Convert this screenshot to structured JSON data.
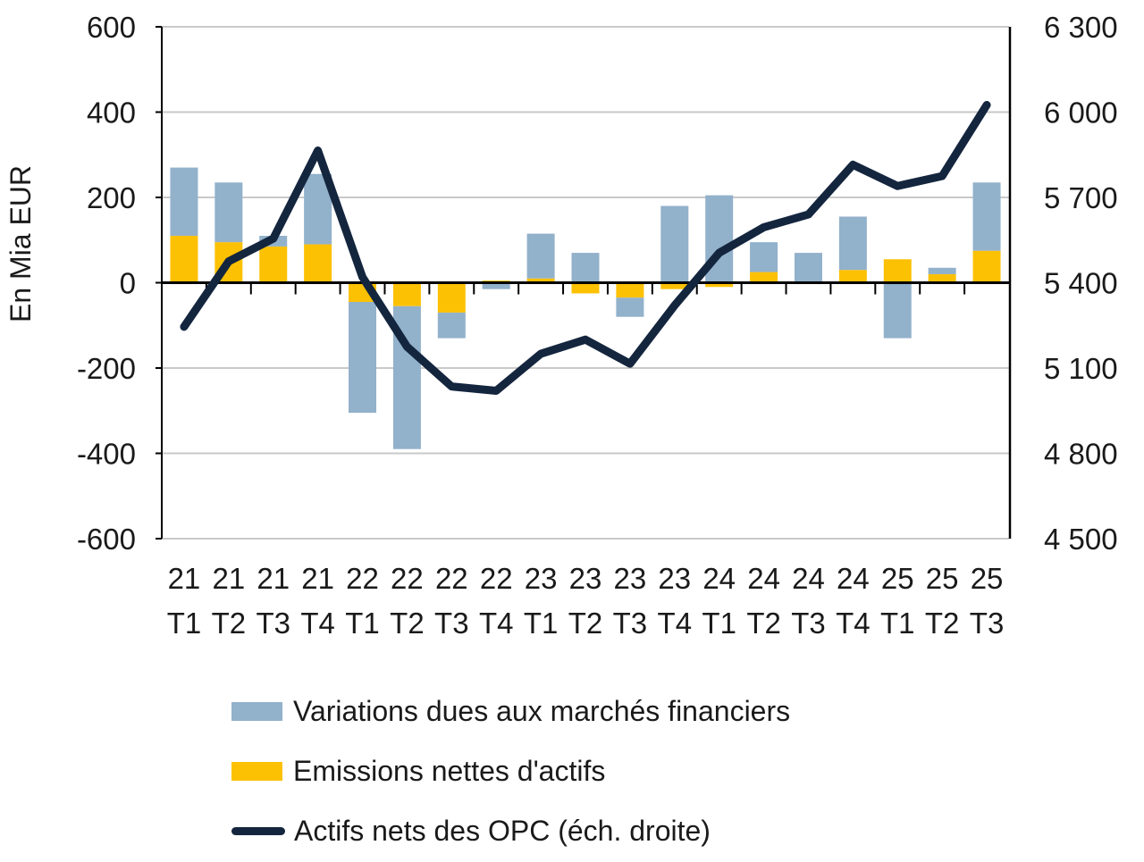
{
  "axes": {
    "left": {
      "title": "En Mia EUR",
      "tick_labels": [
        "600",
        "400",
        "200",
        "0",
        "-200",
        "-400",
        "-600"
      ]
    },
    "right": {
      "tick_labels": [
        "6 300",
        "6 000",
        "5 700",
        "5 400",
        "5 100",
        "4 800",
        "4 500"
      ]
    }
  },
  "legend": {
    "items": [
      {
        "label": "Variations dues aux marchés financiers",
        "swatch": "bar",
        "color": "#92b1cb"
      },
      {
        "label": "Emissions nettes d'actifs",
        "swatch": "bar",
        "color": "#fdc104"
      },
      {
        "label": "Actifs nets des OPC (éch. droite)",
        "swatch": "line",
        "color": "#14253e"
      }
    ]
  },
  "chart_data": {
    "type": "bar+line",
    "categories": [
      "21 T1",
      "21 T2",
      "21 T3",
      "21 T4",
      "22 T1",
      "22 T2",
      "22 T3",
      "22 T4",
      "23 T1",
      "23 T2",
      "23 T3",
      "23 T4",
      "24 T1",
      "24 T2",
      "24 T3",
      "24 T4",
      "25 T1",
      "25 T2",
      "25 T3"
    ],
    "left_ylabel": "En Mia EUR",
    "left_ylim": [
      -600,
      600
    ],
    "right_ylim": [
      4500,
      6300
    ],
    "grid": true,
    "legend_position": "bottom-left",
    "series": [
      {
        "name": "Emissions nettes d'actifs",
        "type": "bar",
        "stack": "base",
        "axis": "left",
        "color": "#fdc104",
        "values": [
          110,
          95,
          85,
          90,
          -45,
          -55,
          -70,
          5,
          10,
          -25,
          -35,
          -15,
          -10,
          25,
          0,
          30,
          55,
          20,
          75
        ]
      },
      {
        "name": "Variations dues aux marchés financiers",
        "type": "bar",
        "stack": "top",
        "axis": "left",
        "color": "#92b1cb",
        "values": [
          160,
          140,
          25,
          165,
          -260,
          -335,
          -60,
          -15,
          105,
          70,
          -45,
          180,
          205,
          70,
          70,
          125,
          -130,
          15,
          160
        ]
      },
      {
        "name": "Actifs nets des OPC (éch. droite)",
        "type": "line",
        "axis": "right",
        "color": "#14253e",
        "values": [
          5245,
          5475,
          5555,
          5865,
          5420,
          5175,
          5035,
          5020,
          5150,
          5200,
          5115,
          5320,
          5505,
          5595,
          5640,
          5815,
          5740,
          5775,
          6025
        ]
      }
    ]
  },
  "style": {
    "gridline_color": "#c9c9c9",
    "axis_color": "#000000",
    "text_color": "#1a1a1a"
  }
}
